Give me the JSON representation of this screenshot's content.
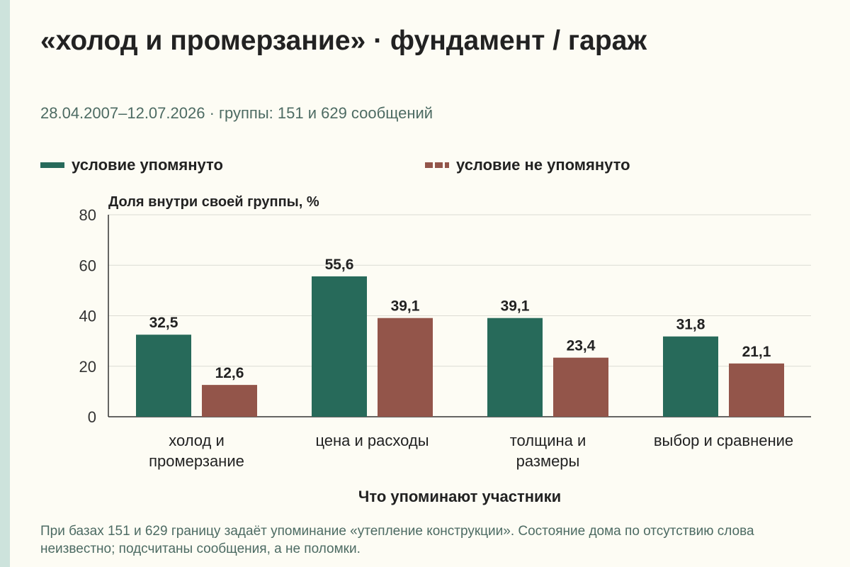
{
  "header": {
    "title": "«холод и промерзание» · фундамент / гараж",
    "subtitle": "28.04.2007–12.07.2026 · группы: 151 и 629 сообщений"
  },
  "legend": [
    {
      "label": "условие упомянуто",
      "color": "#276a5a",
      "style": "solid"
    },
    {
      "label": "условие не упомянуто",
      "color": "#93554a",
      "style": "dashed"
    }
  ],
  "chart_data": {
    "type": "bar",
    "ylabel": "Доля внутри своей группы, %",
    "xlabel": "Что упоминают участники",
    "ylim": [
      0,
      80
    ],
    "yticks": [
      "0",
      "20",
      "40",
      "60",
      "80"
    ],
    "grid": true,
    "legend_position": "top",
    "categories": [
      [
        "холод и",
        "промерзание"
      ],
      [
        "цена и расходы"
      ],
      [
        "толщина и",
        "размеры"
      ],
      [
        "выбор и сравнение"
      ]
    ],
    "series": [
      {
        "name": "условие упомянуто",
        "color": "#276a5a",
        "values": [
          32.5,
          55.6,
          39.1,
          31.8
        ],
        "labels": [
          "32,5",
          "55,6",
          "39,1",
          "31,8"
        ]
      },
      {
        "name": "условие не упомянуто",
        "color": "#93554a",
        "values": [
          12.6,
          39.1,
          23.4,
          21.1
        ],
        "labels": [
          "12,6",
          "39,1",
          "23,4",
          "21,1"
        ]
      }
    ]
  },
  "footer": {
    "note": "При базах 151 и 629 границу задаёт упоминание «утепление конструкции». Состояние дома по отсутствию слова неизвестно; подсчитаны сообщения, а не поломки."
  }
}
